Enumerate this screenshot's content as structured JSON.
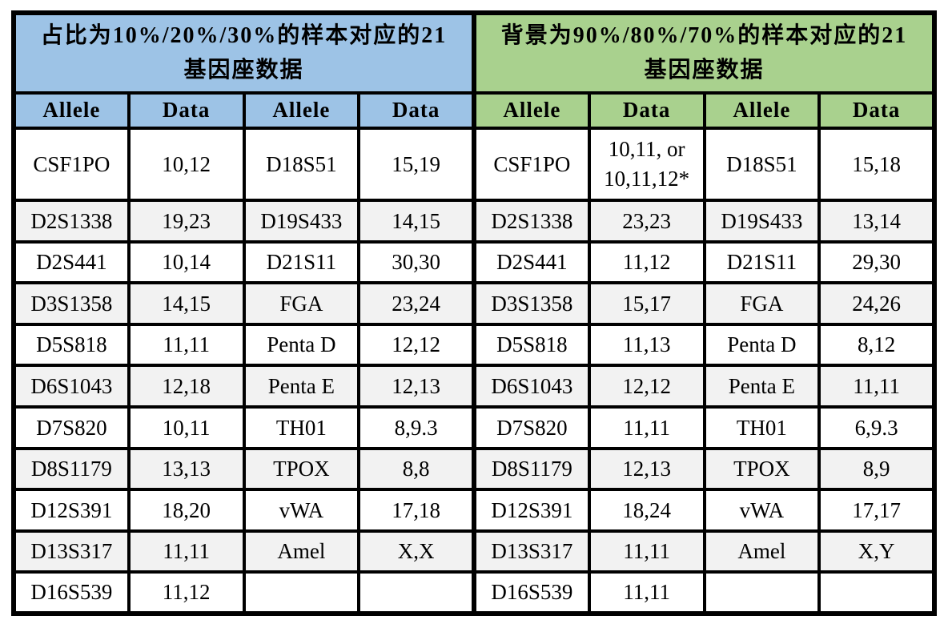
{
  "left_table": {
    "title": "占比为10%/20%/30%的样本对应的21基因座数据",
    "header_color": "#9DC3E6",
    "columns": [
      "Allele",
      "Data",
      "Allele",
      "Data"
    ],
    "rows": [
      [
        "CSF1PO",
        "10,12",
        "D18S51",
        "15,19"
      ],
      [
        "D2S1338",
        "19,23",
        "D19S433",
        "14,15"
      ],
      [
        "D2S441",
        "10,14",
        "D21S11",
        "30,30"
      ],
      [
        "D3S1358",
        "14,15",
        "FGA",
        "23,24"
      ],
      [
        "D5S818",
        "11,11",
        "Penta D",
        "12,12"
      ],
      [
        "D6S1043",
        "12,18",
        "Penta E",
        "12,13"
      ],
      [
        "D7S820",
        "10,11",
        "TH01",
        "8,9.3"
      ],
      [
        "D8S1179",
        "13,13",
        "TPOX",
        "8,8"
      ],
      [
        "D12S391",
        "18,20",
        "vWA",
        "17,18"
      ],
      [
        "D13S317",
        "11,11",
        "Amel",
        "X,X"
      ],
      [
        "D16S539",
        "11,12",
        "",
        ""
      ]
    ]
  },
  "right_table": {
    "title": "背景为90%/80%/70%的样本对应的21基因座数据",
    "header_color": "#A9D18E",
    "columns": [
      "Allele",
      "Data",
      "Allele",
      "Data"
    ],
    "rows": [
      [
        "CSF1PO",
        "10,11, or\n10,11,12*",
        "D18S51",
        "15,18"
      ],
      [
        "D2S1338",
        "23,23",
        "D19S433",
        "13,14"
      ],
      [
        "D2S441",
        "11,12",
        "D21S11",
        "29,30"
      ],
      [
        "D3S1358",
        "15,17",
        "FGA",
        "24,26"
      ],
      [
        "D5S818",
        "11,13",
        "Penta D",
        "8,12"
      ],
      [
        "D6S1043",
        "12,12",
        "Penta E",
        "11,11"
      ],
      [
        "D7S820",
        "11,11",
        "TH01",
        "6,9.3"
      ],
      [
        "D8S1179",
        "12,13",
        "TPOX",
        "8,9"
      ],
      [
        "D12S391",
        "18,24",
        "vWA",
        "17,17"
      ],
      [
        "D13S317",
        "11,11",
        "Amel",
        "X,Y"
      ],
      [
        "D16S539",
        "11,11",
        "",
        ""
      ]
    ]
  },
  "colors": {
    "row_alt": "#F2F2F2",
    "row_base": "#FFFFFF",
    "border": "#000000"
  }
}
